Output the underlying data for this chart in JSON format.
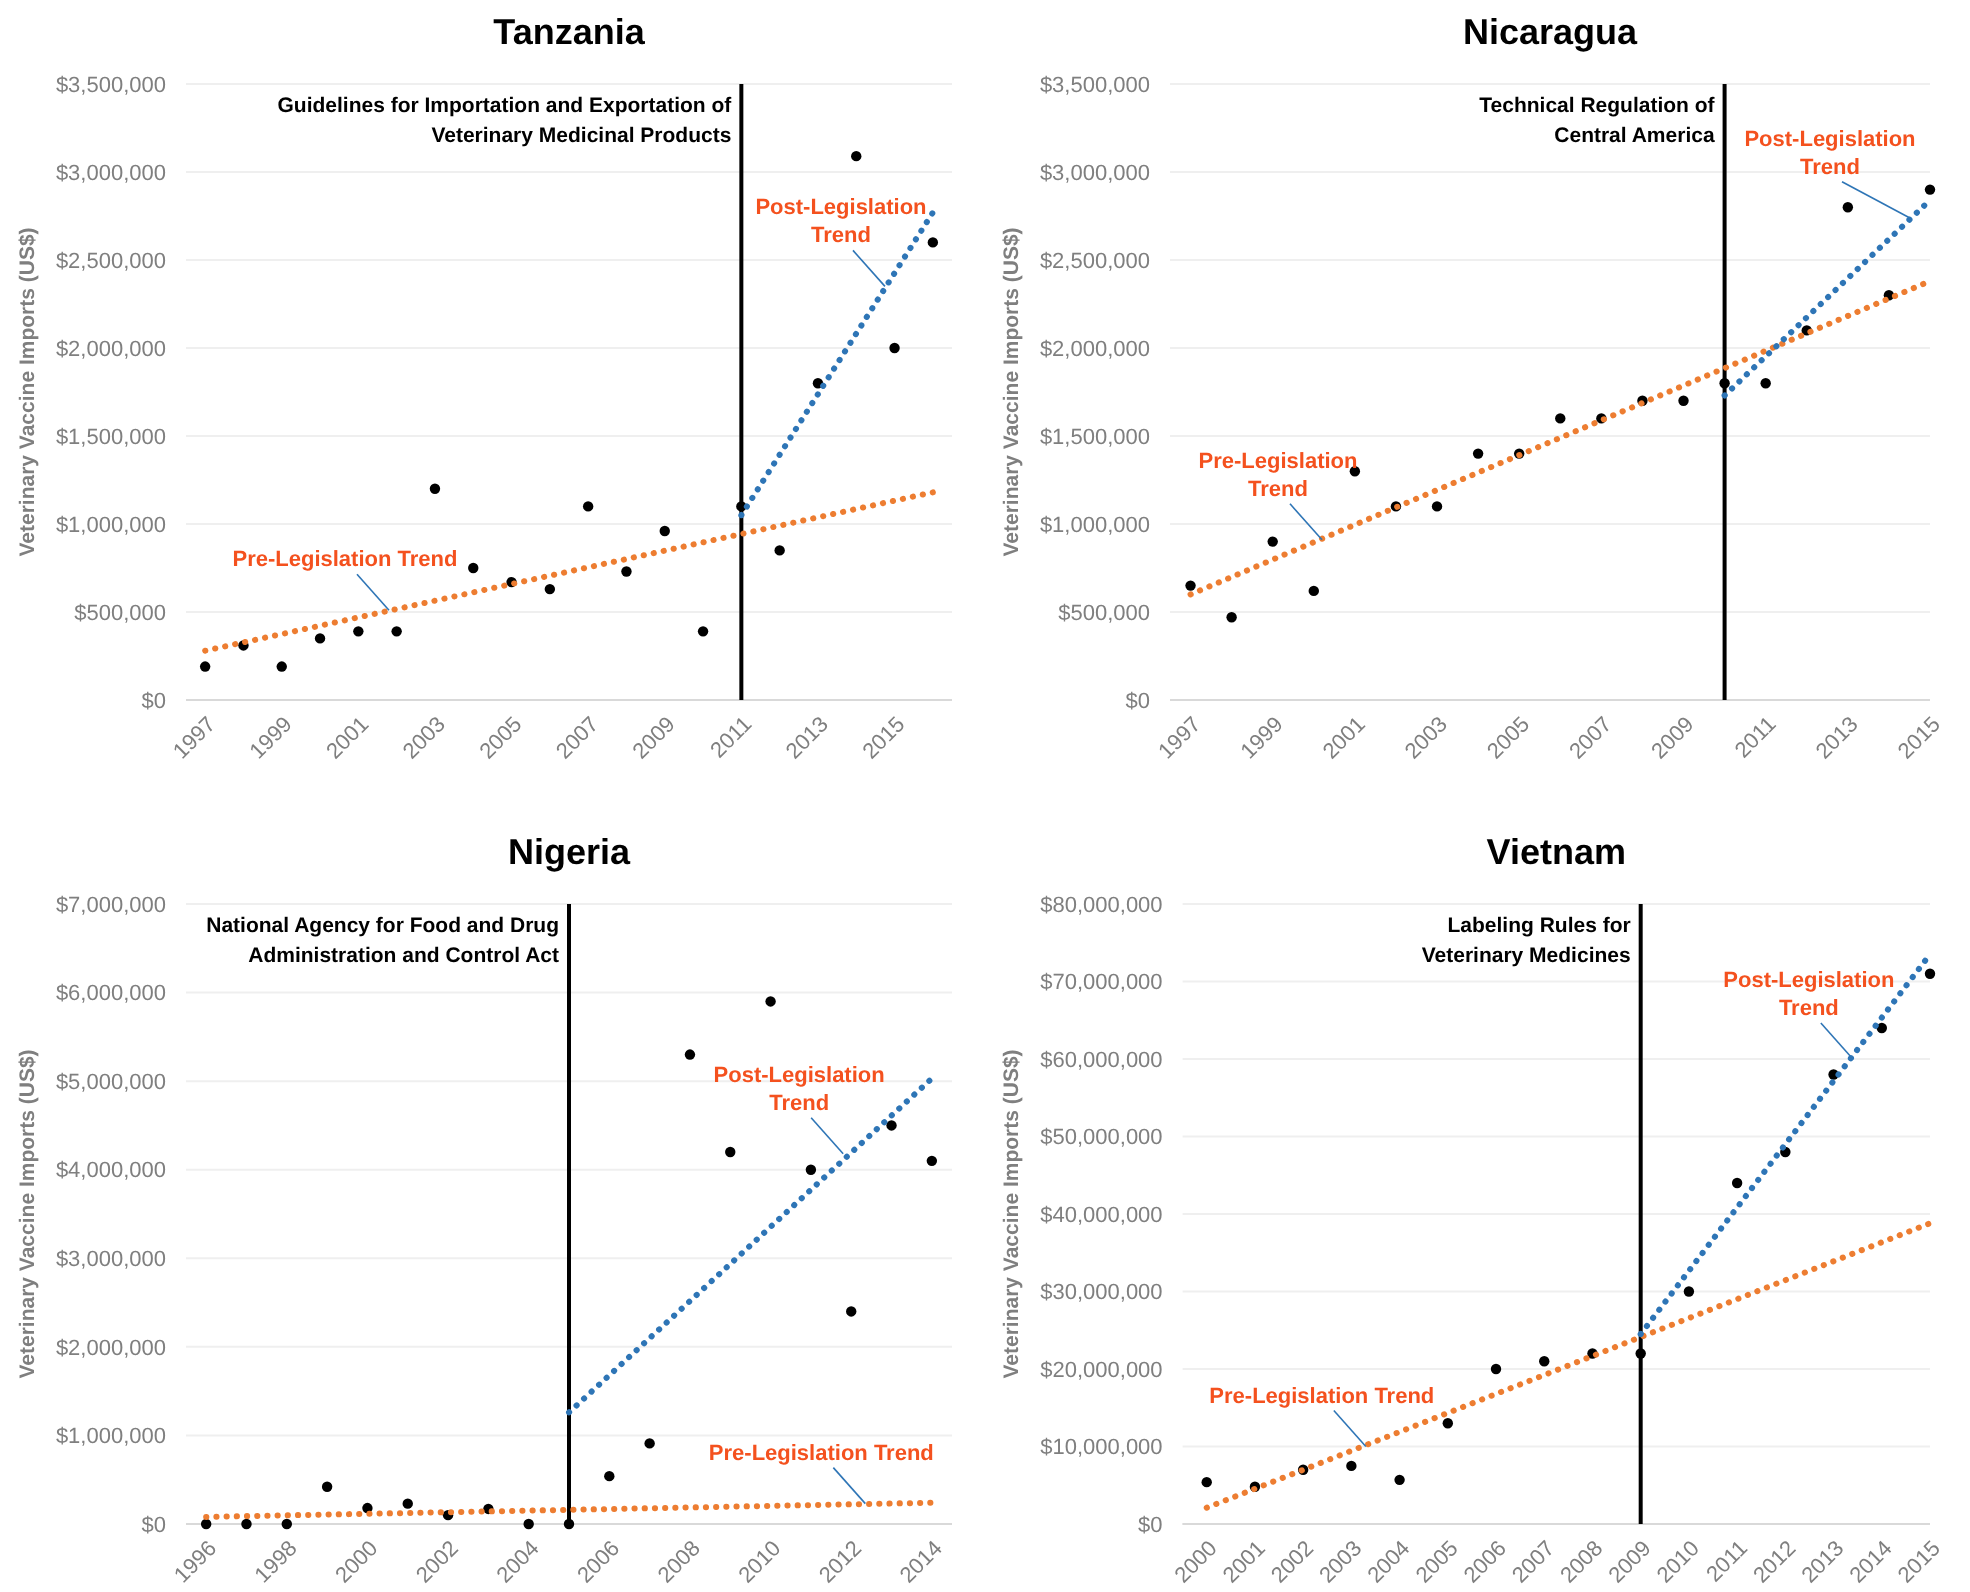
{
  "chart_data": [
    {
      "type": "scatter",
      "title": "Tanzania",
      "ylabel": "Veterinary Vaccine Imports (US$)",
      "grid": "y",
      "x": [
        1997,
        1998,
        1999,
        2000,
        2001,
        2002,
        2003,
        2004,
        2005,
        2006,
        2007,
        2008,
        2009,
        2010,
        2011,
        2012,
        2013,
        2014,
        2015,
        2016
      ],
      "xlim": [
        1996.5,
        2016.5
      ],
      "xticks": [
        1997,
        1999,
        2001,
        2003,
        2005,
        2007,
        2009,
        2011,
        2013,
        2015
      ],
      "ylim": [
        0,
        3500000
      ],
      "yticks": [
        {
          "value": 0,
          "label": "$0"
        },
        {
          "value": 500000,
          "label": "$500,000"
        },
        {
          "value": 1000000,
          "label": "$1,000,000"
        },
        {
          "value": 1500000,
          "label": "$1,500,000"
        },
        {
          "value": 2000000,
          "label": "$2,000,000"
        },
        {
          "value": 2500000,
          "label": "$2,500,000"
        },
        {
          "value": 3000000,
          "label": "$3,000,000"
        },
        {
          "value": 3500000,
          "label": "$3,500,000"
        }
      ],
      "series": [
        {
          "marker": "circle",
          "color": "#000000",
          "values": [
            190000,
            310000,
            190000,
            350000,
            390000,
            390000,
            1200000,
            750000,
            670000,
            630000,
            1100000,
            730000,
            960000,
            390000,
            1100000,
            850000,
            1800000,
            3090000,
            2000000,
            2600000
          ]
        },
        {
          "type": "line",
          "line_style": "dotted",
          "color": "#ed7d31",
          "x": [
            1997,
            2016
          ],
          "values": [
            280000,
            1180000
          ]
        },
        {
          "type": "line",
          "line_style": "dotted",
          "color": "#2e75b6",
          "x": [
            2011,
            2016
          ],
          "values": [
            1050000,
            2770000
          ]
        }
      ],
      "ref_lines": [
        {
          "axis": "x",
          "value": 2011,
          "label": "Guidelines for Importation and Exportation of\nVeterinary Medicinal Products",
          "color": "#000000"
        }
      ],
      "annotations": [
        {
          "text": "Pre-Legislation Trend",
          "x": 2001.8,
          "y": 510000
        },
        {
          "text": "Post-Legislation\nTrend",
          "x": 2014.75,
          "y": 2350000
        }
      ]
    },
    {
      "type": "scatter",
      "title": "Nicaragua",
      "ylabel": "Veterinary Vaccine Imports (US$)",
      "grid": "y",
      "x": [
        1997,
        1998,
        1999,
        2000,
        2001,
        2002,
        2003,
        2004,
        2005,
        2006,
        2007,
        2008,
        2009,
        2010,
        2011,
        2012,
        2013,
        2014,
        2015
      ],
      "xlim": [
        1996.5,
        2015
      ],
      "xticks": [
        1997,
        1999,
        2001,
        2003,
        2005,
        2007,
        2009,
        2011,
        2013,
        2015
      ],
      "ylim": [
        0,
        3500000
      ],
      "yticks": [
        {
          "value": 0,
          "label": "$0"
        },
        {
          "value": 500000,
          "label": "$500,000"
        },
        {
          "value": 1000000,
          "label": "$1,000,000"
        },
        {
          "value": 1500000,
          "label": "$1,500,000"
        },
        {
          "value": 2000000,
          "label": "$2,000,000"
        },
        {
          "value": 2500000,
          "label": "$2,500,000"
        },
        {
          "value": 3000000,
          "label": "$3,000,000"
        },
        {
          "value": 3500000,
          "label": "$3,500,000"
        }
      ],
      "series": [
        {
          "marker": "circle",
          "color": "#000000",
          "values": [
            650000,
            470000,
            900000,
            620000,
            1300000,
            1100000,
            1100000,
            1400000,
            1400000,
            1600000,
            1600000,
            1700000,
            1700000,
            1800000,
            1800000,
            2100000,
            2800000,
            2300000,
            2900000
          ]
        },
        {
          "type": "line",
          "line_style": "dotted",
          "color": "#ed7d31",
          "x": [
            1997,
            2015
          ],
          "values": [
            600000,
            2380000
          ]
        },
        {
          "type": "line",
          "line_style": "dotted",
          "color": "#2e75b6",
          "x": [
            2010,
            2015
          ],
          "values": [
            1730000,
            2840000
          ]
        }
      ],
      "ref_lines": [
        {
          "axis": "x",
          "value": 2010,
          "label": "Technical Regulation of\nCentral America",
          "color": "#000000"
        }
      ],
      "annotations": [
        {
          "text": "Pre-Legislation\nTrend",
          "x": 2000.2,
          "y": 910000
        },
        {
          "text": "Post-Legislation\nTrend",
          "x": 2014.5,
          "y": 2740000
        }
      ]
    },
    {
      "type": "scatter",
      "title": "Nigeria",
      "ylabel": "Veterinary Vaccine Imports (US$)",
      "grid": "y",
      "x": [
        1996,
        1997,
        1998,
        1999,
        2000,
        2001,
        2002,
        2003,
        2004,
        2005,
        2006,
        2007,
        2008,
        2009,
        2010,
        2011,
        2012,
        2013,
        2014
      ],
      "xlim": [
        1995.5,
        2014.5
      ],
      "xticks": [
        1996,
        1998,
        2000,
        2002,
        2004,
        2006,
        2008,
        2010,
        2012,
        2014
      ],
      "ylim": [
        0,
        7000000
      ],
      "yticks": [
        {
          "value": 0,
          "label": "$0"
        },
        {
          "value": 1000000,
          "label": "$1,000,000"
        },
        {
          "value": 2000000,
          "label": "$2,000,000"
        },
        {
          "value": 3000000,
          "label": "$3,000,000"
        },
        {
          "value": 4000000,
          "label": "$4,000,000"
        },
        {
          "value": 5000000,
          "label": "$5,000,000"
        },
        {
          "value": 6000000,
          "label": "$6,000,000"
        },
        {
          "value": 7000000,
          "label": "$7,000,000"
        }
      ],
      "series": [
        {
          "marker": "circle",
          "color": "#000000",
          "values": [
            0,
            0,
            0,
            420000,
            180000,
            230000,
            100000,
            170000,
            0,
            0,
            540000,
            910000,
            5300000,
            4200000,
            5900000,
            4000000,
            2400000,
            4500000,
            4100000
          ]
        },
        {
          "type": "line",
          "line_style": "dotted",
          "color": "#ed7d31",
          "x": [
            1996,
            2014
          ],
          "values": [
            80000,
            240000
          ]
        },
        {
          "type": "line",
          "line_style": "dotted",
          "color": "#2e75b6",
          "x": [
            2005,
            2014
          ],
          "values": [
            1260000,
            5030000
          ]
        }
      ],
      "ref_lines": [
        {
          "axis": "x",
          "value": 2005,
          "label": "National Agency for Food and Drug\nAdministration and Control Act",
          "color": "#000000"
        }
      ],
      "annotations": [
        {
          "text": "Post-Legislation\nTrend",
          "x": 2011.8,
          "y": 4180000
        },
        {
          "text": "Pre-Legislation Trend",
          "x": 2012.35,
          "y": 230000
        }
      ]
    },
    {
      "type": "scatter",
      "title": "Vietnam",
      "ylabel": "Veterinary Vaccine Imports (US$)",
      "grid": "y",
      "x": [
        2000,
        2001,
        2002,
        2003,
        2004,
        2005,
        2006,
        2007,
        2008,
        2009,
        2010,
        2011,
        2012,
        2013,
        2014,
        2015
      ],
      "xlim": [
        1999.5,
        2015
      ],
      "xticks": [
        2000,
        2001,
        2002,
        2003,
        2004,
        2005,
        2006,
        2007,
        2008,
        2009,
        2010,
        2011,
        2012,
        2013,
        2014,
        2015
      ],
      "ylim": [
        0,
        80000000
      ],
      "yticks": [
        {
          "value": 0,
          "label": "$0"
        },
        {
          "value": 10000000,
          "label": "$10,000,000"
        },
        {
          "value": 20000000,
          "label": "$20,000,000"
        },
        {
          "value": 30000000,
          "label": "$30,000,000"
        },
        {
          "value": 40000000,
          "label": "$40,000,000"
        },
        {
          "value": 50000000,
          "label": "$50,000,000"
        },
        {
          "value": 60000000,
          "label": "$60,000,000"
        },
        {
          "value": 70000000,
          "label": "$70,000,000"
        },
        {
          "value": 80000000,
          "label": "$80,000,000"
        }
      ],
      "series": [
        {
          "marker": "circle",
          "color": "#000000",
          "values": [
            5400000,
            4800000,
            7000000,
            7500000,
            5700000,
            13000000,
            20000000,
            21000000,
            22000000,
            22000000,
            30000000,
            44000000,
            48000000,
            58000000,
            64000000,
            71000000
          ]
        },
        {
          "type": "line",
          "line_style": "dotted",
          "color": "#ed7d31",
          "x": [
            2000,
            2015
          ],
          "values": [
            2100000,
            38800000
          ]
        },
        {
          "type": "line",
          "line_style": "dotted",
          "color": "#2e75b6",
          "x": [
            2009,
            2015
          ],
          "values": [
            24500000,
            73500000
          ]
        }
      ],
      "ref_lines": [
        {
          "axis": "x",
          "value": 2009,
          "label": "Labeling Rules for\nVeterinary Medicines",
          "color": "#000000"
        }
      ],
      "annotations": [
        {
          "text": "Pre-Legislation Trend",
          "x": 2003.3,
          "y": 10000000
        },
        {
          "text": "Post-Legislation\nTrend",
          "x": 2013.4,
          "y": 60000000
        }
      ]
    }
  ]
}
